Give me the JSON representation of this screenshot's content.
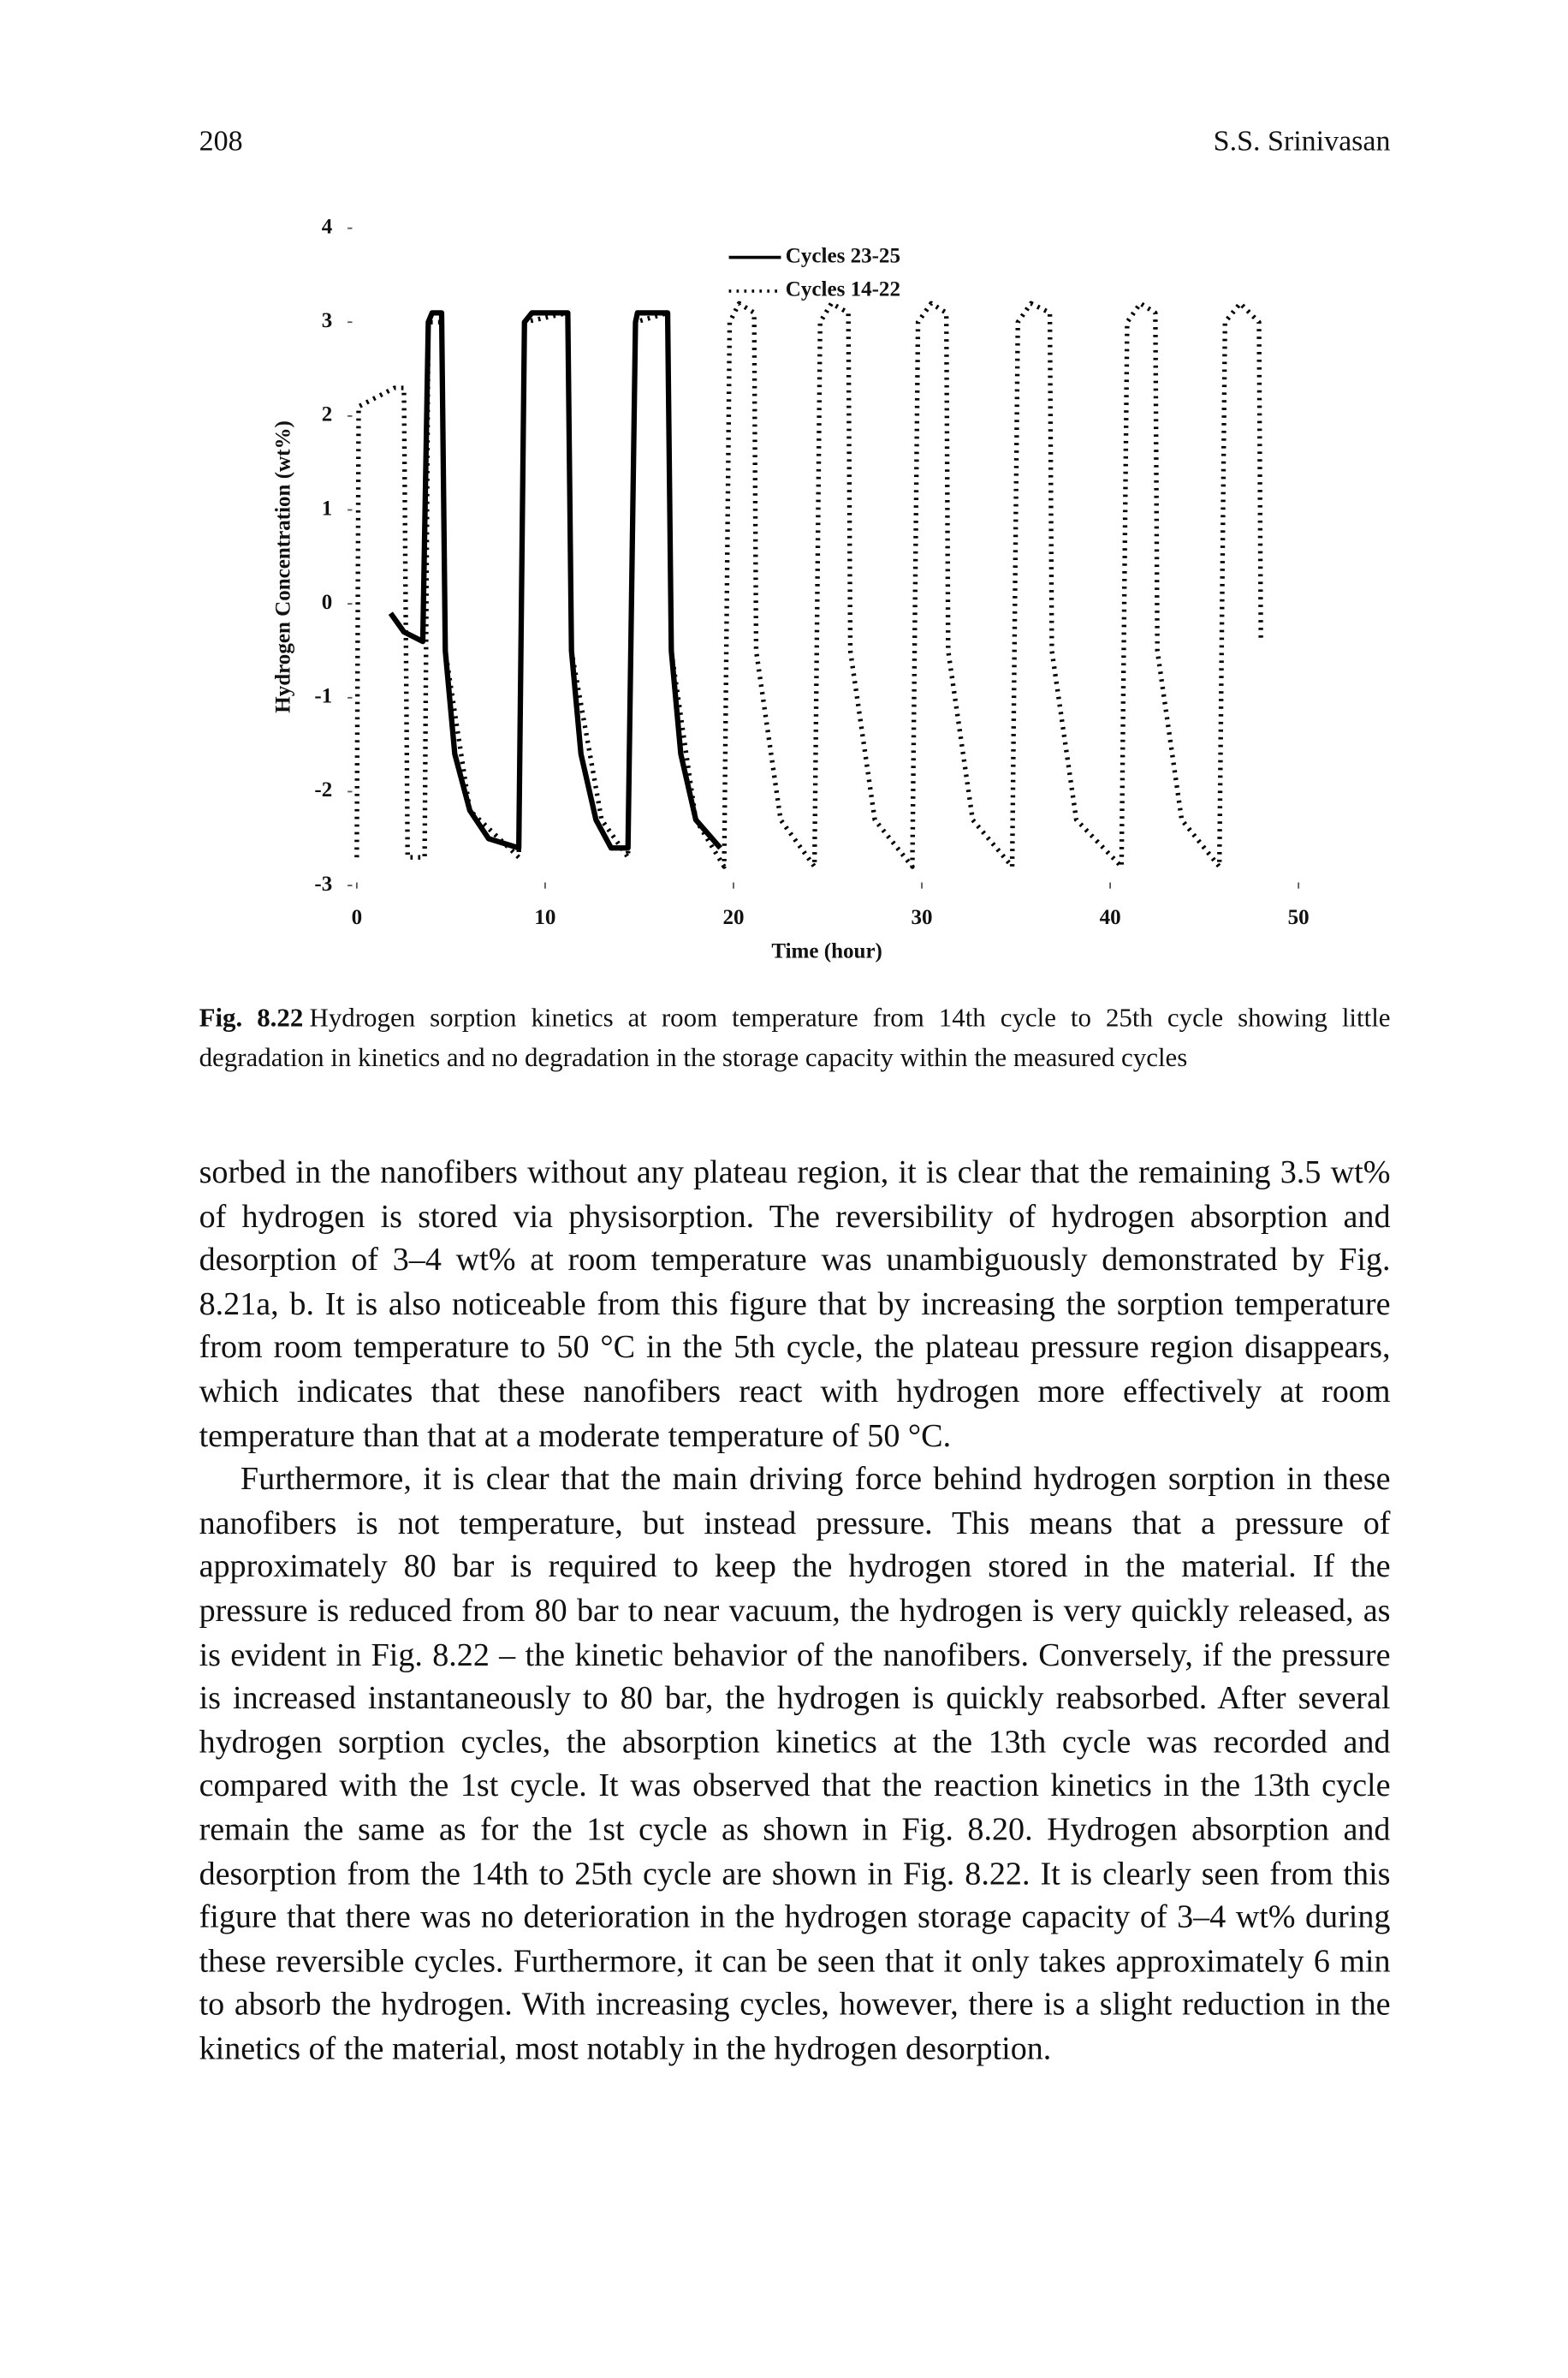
{
  "header": {
    "page_number": "208",
    "author": "S.S. Srinivasan"
  },
  "chart_data": {
    "type": "line",
    "x_label": "Time (hour)",
    "y_label": "Hydrogen Concentration (wt%)",
    "xlim": [
      0,
      50
    ],
    "xticks": [
      0,
      10,
      20,
      30,
      40,
      50
    ],
    "ylim": [
      -3,
      4
    ],
    "yticks": [
      -3,
      -2,
      -1,
      0,
      1,
      2,
      3,
      4
    ],
    "series": [
      {
        "name": "Cycles 23-25",
        "color": "#000000",
        "line_style": "solid",
        "x": [
          1.8,
          2.5,
          3.5,
          3.8,
          4.0,
          4.5,
          4.7,
          5.2,
          6.0,
          7.0,
          8.6,
          8.9,
          9.3,
          11.2,
          11.4,
          11.9,
          12.7,
          13.5,
          14.4,
          14.8,
          14.9,
          16.5,
          16.7,
          17.2,
          18.0,
          19.3
        ],
        "values": [
          -0.1,
          -0.3,
          -0.4,
          3.0,
          3.1,
          3.1,
          -0.5,
          -1.6,
          -2.2,
          -2.5,
          -2.6,
          3.0,
          3.1,
          3.1,
          -0.5,
          -1.6,
          -2.3,
          -2.6,
          -2.6,
          3.0,
          3.1,
          3.1,
          -0.5,
          -1.6,
          -2.3,
          -2.6
        ]
      },
      {
        "name": "Cycles 14-22",
        "color": "#000000",
        "line_style": "dotted",
        "x": [
          0,
          0.1,
          2.0,
          2.5,
          2.7,
          3.6,
          3.8,
          4.5,
          4.7,
          6.0,
          8.6,
          8.9,
          11.2,
          11.4,
          13.0,
          14.4,
          14.8,
          16.5,
          16.7,
          18.0,
          19.5,
          19.8,
          20.3,
          21.1,
          21.2,
          22.5,
          24.3,
          24.6,
          25.2,
          26.1,
          26.2,
          27.5,
          29.5,
          29.8,
          30.5,
          31.3,
          31.4,
          32.7,
          34.8,
          35.1,
          35.8,
          36.8,
          36.9,
          38.2,
          40.6,
          40.9,
          41.6,
          42.4,
          42.5,
          43.8,
          45.8,
          46.1,
          46.9,
          47.9,
          48.0
        ],
        "values": [
          -2.7,
          2.1,
          2.3,
          2.3,
          -2.7,
          -2.7,
          3.0,
          3.0,
          -0.5,
          -2.2,
          -2.7,
          3.0,
          3.1,
          -0.5,
          -2.3,
          -2.7,
          3.0,
          3.1,
          -0.5,
          -2.3,
          -2.8,
          3.0,
          3.2,
          3.1,
          -0.5,
          -2.3,
          -2.8,
          3.0,
          3.2,
          3.1,
          -0.5,
          -2.3,
          -2.8,
          3.0,
          3.2,
          3.1,
          -0.5,
          -2.3,
          -2.8,
          3.0,
          3.2,
          3.1,
          -0.5,
          -2.3,
          -2.8,
          3.0,
          3.2,
          3.1,
          -0.5,
          -2.3,
          -2.8,
          3.0,
          3.2,
          3.0,
          -0.4
        ]
      }
    ]
  },
  "caption": {
    "label": "Fig. 8.22",
    "text": "Hydrogen sorption kinetics at room temperature from 14th cycle to 25th cycle showing little degradation in kinetics and no degradation in the storage capacity within the measured cycles"
  },
  "paragraphs": [
    "sorbed in the nanofibers without any plateau region, it is clear that the remaining 3.5 wt% of hydrogen is stored via physisorption. The reversibility of hydrogen absorption and desorption of 3–4 wt% at room temperature was unambiguously demonstrated by Fig. 8.21a, b. It is also noticeable from this figure that by increasing the sorption temperature from room temperature to 50 °C in the 5th cycle, the plateau pressure region disappears, which indicates that these nanofibers react with hydrogen more effectively at room temperature than that at a moderate temperature of 50 °C.",
    "Furthermore, it is clear that the main driving force behind hydrogen sorption in these nanofibers is not temperature, but instead pressure. This means that a pressure of approximately 80 bar is required to keep the hydrogen stored in the material. If the pressure is reduced from 80 bar to near vacuum, the hydrogen is very quickly released, as is evident in Fig. 8.22 – the kinetic behavior of the nanofibers. Conversely, if the pressure is increased instantaneously to 80 bar, the hydrogen is quickly reabsorbed. After several hydrogen sorption cycles, the absorption kinetics at the 13th cycle was recorded and compared with the 1st cycle. It was observed that the reaction kinetics in the 13th cycle remain the same as for the 1st cycle as shown in Fig. 8.20. Hydrogen absorption and desorption from the 14th to 25th cycle are shown in Fig. 8.22. It is clearly seen from this figure that there was no deterioration in the hydrogen storage capacity of 3–4 wt% during these reversible cycles. Furthermore, it can be seen that it only takes approximately 6 min to absorb the hydrogen. With increasing cycles, however, there is a slight reduction in the kinetics of the material, most notably in the hydrogen desorption."
  ]
}
